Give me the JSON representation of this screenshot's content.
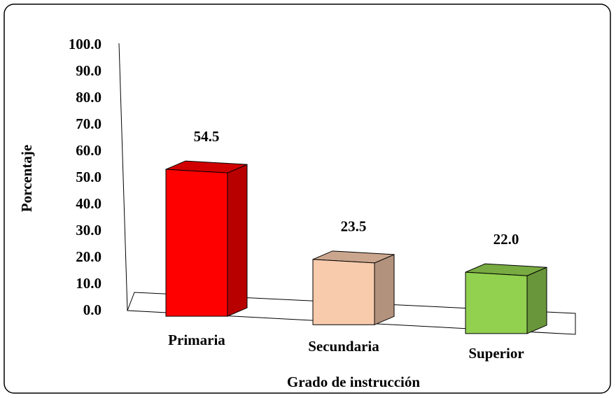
{
  "chart_data": {
    "type": "bar3d",
    "categories": [
      "Primaria",
      "Secundaria",
      "Superior"
    ],
    "values": [
      54.5,
      23.5,
      22.0
    ],
    "value_labels": [
      "54.5",
      "23.5",
      "22.0"
    ],
    "colors": [
      "#ff0000",
      "#f8cbad",
      "#92d050"
    ],
    "ylim": [
      0,
      100
    ],
    "yticks": [
      {
        "value": 0,
        "label": "0.0"
      },
      {
        "value": 10,
        "label": "10.0"
      },
      {
        "value": 20,
        "label": "20.0"
      },
      {
        "value": 30,
        "label": "30.0"
      },
      {
        "value": 40,
        "label": "40.0"
      },
      {
        "value": 50,
        "label": "50.0"
      },
      {
        "value": 60,
        "label": "60.0"
      },
      {
        "value": 70,
        "label": "70.0"
      },
      {
        "value": 80,
        "label": "80.0"
      },
      {
        "value": 90,
        "label": "90.0"
      },
      {
        "value": 100,
        "label": "100.0"
      }
    ],
    "y_label": "Porcentaje",
    "x_label": "Grado de instrucción"
  }
}
